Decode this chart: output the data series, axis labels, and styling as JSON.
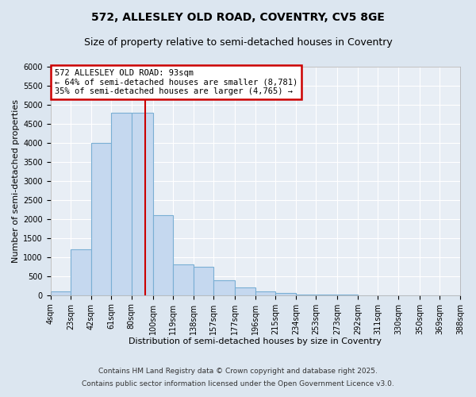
{
  "title1": "572, ALLESLEY OLD ROAD, COVENTRY, CV5 8GE",
  "title2": "Size of property relative to semi-detached houses in Coventry",
  "xlabel": "Distribution of semi-detached houses by size in Coventry",
  "ylabel": "Number of semi-detached properties",
  "annotation_line1": "572 ALLESLEY OLD ROAD: 93sqm",
  "annotation_line2": "← 64% of semi-detached houses are smaller (8,781)",
  "annotation_line3": "35% of semi-detached houses are larger (4,765) →",
  "footer1": "Contains HM Land Registry data © Crown copyright and database right 2025.",
  "footer2": "Contains public sector information licensed under the Open Government Licence v3.0.",
  "bar_edges": [
    4,
    23,
    42,
    61,
    80,
    100,
    119,
    138,
    157,
    177,
    196,
    215,
    234,
    253,
    273,
    292,
    311,
    330,
    350,
    369,
    388
  ],
  "bar_heights": [
    100,
    1200,
    4000,
    4800,
    4800,
    2100,
    800,
    750,
    400,
    200,
    100,
    50,
    20,
    10,
    5,
    3,
    2,
    1,
    1,
    0
  ],
  "bar_color": "#c5d8ef",
  "bar_edgecolor": "#7aafd4",
  "vline_x": 93,
  "vline_color": "#cc0000",
  "ylim": [
    0,
    6000
  ],
  "xlim": [
    4,
    388
  ],
  "yticks": [
    0,
    500,
    1000,
    1500,
    2000,
    2500,
    3000,
    3500,
    4000,
    4500,
    5000,
    5500,
    6000
  ],
  "xtick_labels": [
    "4sqm",
    "23sqm",
    "42sqm",
    "61sqm",
    "80sqm",
    "100sqm",
    "119sqm",
    "138sqm",
    "157sqm",
    "177sqm",
    "196sqm",
    "215sqm",
    "234sqm",
    "253sqm",
    "273sqm",
    "292sqm",
    "311sqm",
    "330sqm",
    "350sqm",
    "369sqm",
    "388sqm"
  ],
  "xtick_positions": [
    4,
    23,
    42,
    61,
    80,
    100,
    119,
    138,
    157,
    177,
    196,
    215,
    234,
    253,
    273,
    292,
    311,
    330,
    350,
    369,
    388
  ],
  "bg_color": "#dce6f0",
  "plot_bg_color": "#e8eef5",
  "annotation_box_facecolor": "#ffffff",
  "annotation_box_edgecolor": "#cc0000",
  "title_fontsize": 10,
  "subtitle_fontsize": 9,
  "axis_label_fontsize": 8,
  "tick_fontsize": 7,
  "annotation_fontsize": 7.5,
  "footer_fontsize": 6.5
}
